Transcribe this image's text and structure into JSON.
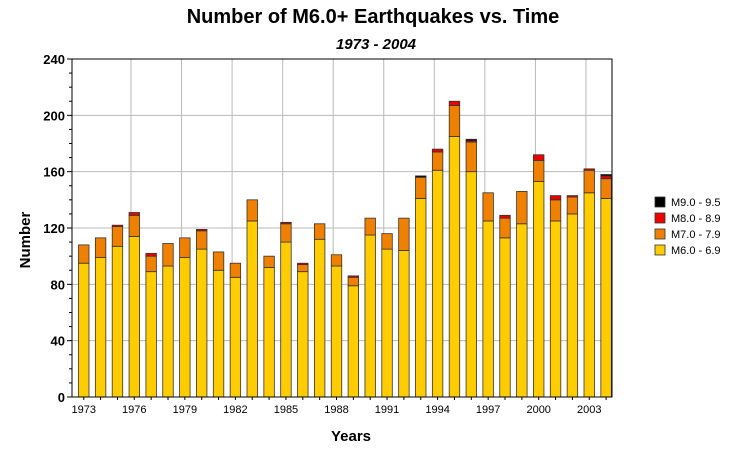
{
  "chart_data": {
    "type": "bar",
    "stacked": true,
    "title": "Number of M6.0+  Earthquakes vs. Time",
    "subtitle": "1973 - 2004",
    "xlabel": "Years",
    "ylabel": "Number",
    "ylim": [
      0,
      240
    ],
    "yticks": [
      0,
      40,
      80,
      120,
      160,
      200,
      240
    ],
    "xtick_labels": [
      "1973",
      "1976",
      "1979",
      "1982",
      "1985",
      "1988",
      "1991",
      "1994",
      "1997",
      "2000",
      "2003"
    ],
    "grid": true,
    "legend_position": "right",
    "categories": [
      "1973",
      "1974",
      "1975",
      "1976",
      "1977",
      "1978",
      "1979",
      "1980",
      "1981",
      "1982",
      "1983",
      "1984",
      "1985",
      "1986",
      "1987",
      "1988",
      "1989",
      "1990",
      "1991",
      "1992",
      "1993",
      "1994",
      "1995",
      "1996",
      "1997",
      "1998",
      "1999",
      "2000",
      "2001",
      "2002",
      "2003",
      "2004"
    ],
    "series": [
      {
        "name": "M6.0 - 6.9",
        "color": "#ffcc00",
        "values": [
          95,
          99,
          107,
          114,
          89,
          93,
          99,
          105,
          90,
          85,
          125,
          92,
          110,
          89,
          112,
          93,
          79,
          115,
          105,
          104,
          141,
          161,
          185,
          160,
          125,
          113,
          123,
          153,
          125,
          130,
          145,
          141
        ]
      },
      {
        "name": "M7.0 - 7.9",
        "color": "#f08000",
        "values": [
          13,
          14,
          14,
          15,
          11,
          16,
          14,
          13,
          13,
          10,
          15,
          8,
          13,
          5,
          11,
          8,
          6,
          12,
          11,
          23,
          15,
          13,
          22,
          21,
          20,
          14,
          23,
          15,
          15,
          12,
          16,
          14
        ]
      },
      {
        "name": "M8.0 - 8.9",
        "color": "#ee0000",
        "values": [
          0,
          0,
          1,
          2,
          2,
          0,
          0,
          1,
          0,
          0,
          0,
          0,
          1,
          1,
          0,
          0,
          1,
          0,
          0,
          0,
          0,
          2,
          3,
          1,
          0,
          2,
          0,
          4,
          3,
          1,
          1,
          2
        ]
      },
      {
        "name": "M9.0 - 9.5",
        "color": "#000000",
        "values": [
          0,
          0,
          0,
          0,
          0,
          0,
          0,
          0,
          0,
          0,
          0,
          0,
          0,
          0,
          0,
          0,
          0,
          0,
          0,
          0,
          1,
          0,
          0,
          1,
          0,
          0,
          0,
          0,
          0,
          0,
          0,
          1
        ]
      }
    ]
  }
}
